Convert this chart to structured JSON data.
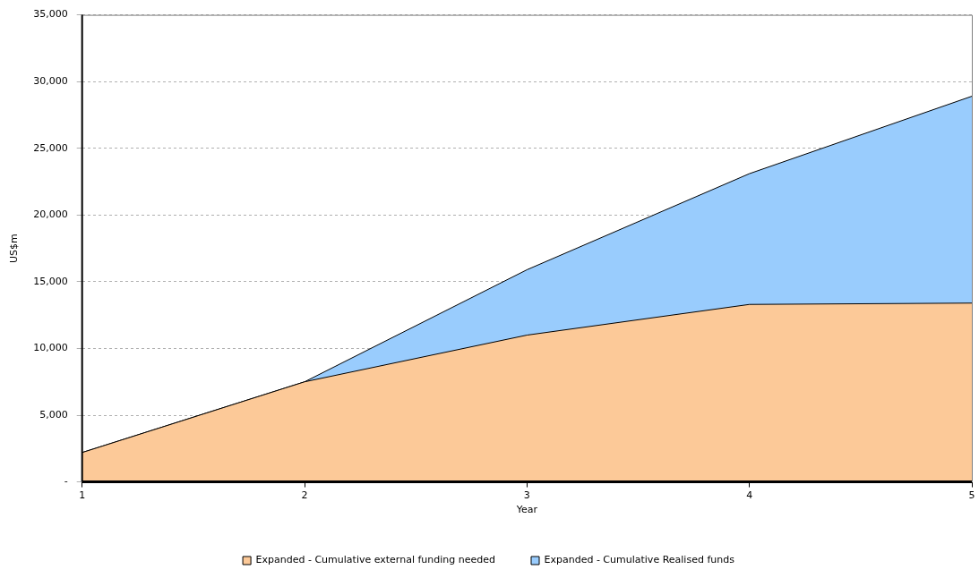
{
  "chart_data": {
    "type": "area",
    "xlabel": "Year",
    "ylabel": "US$m",
    "x": [
      1,
      2,
      3,
      4,
      5
    ],
    "xlim": [
      1,
      5
    ],
    "xticks": [
      1,
      2,
      3,
      4,
      5
    ],
    "ylim": [
      0,
      35000
    ],
    "yticks": [
      {
        "value": 0,
        "label": "-"
      },
      {
        "value": 5000,
        "label": "5,000"
      },
      {
        "value": 10000,
        "label": "10,000"
      },
      {
        "value": 15000,
        "label": "15,000"
      },
      {
        "value": 20000,
        "label": "20,000"
      },
      {
        "value": 25000,
        "label": "25,000"
      },
      {
        "value": 30000,
        "label": "30,000"
      },
      {
        "value": 35000,
        "label": "35,000"
      }
    ],
    "series": [
      {
        "name": "Expanded - Cumulative external funding needed",
        "color": "#fcc998",
        "values": [
          2200,
          7500,
          11000,
          13300,
          13400
        ]
      },
      {
        "name": "Expanded - Cumulative Realised funds",
        "color": "#99ccfd",
        "values": [
          2200,
          7500,
          15900,
          23100,
          28900
        ]
      }
    ],
    "grid": "y",
    "legend": "bottom",
    "marker": "none",
    "line_style": "solid"
  }
}
